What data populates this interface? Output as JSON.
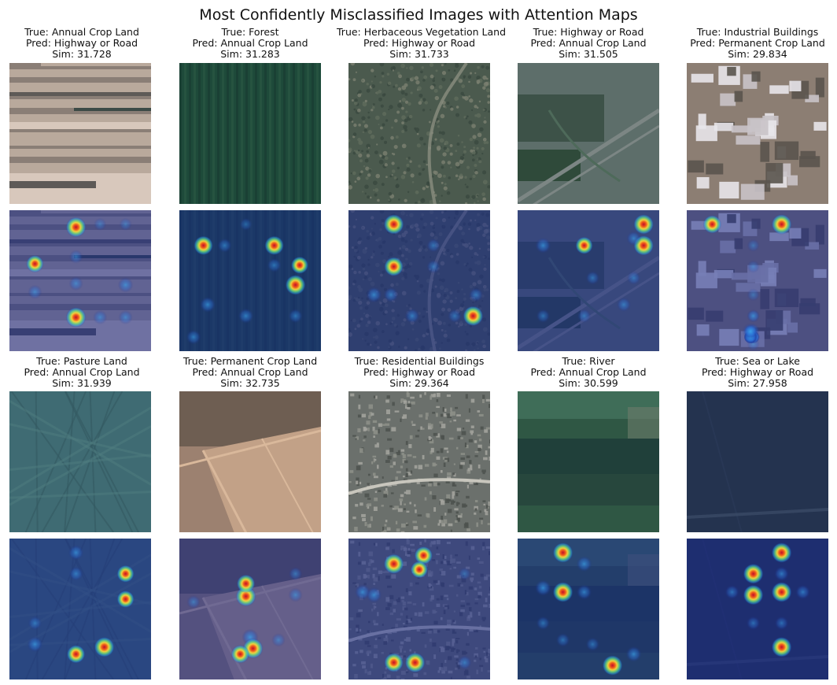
{
  "figure_title": "Most Confidently Misclassified Images with Attention Maps",
  "samples": [
    {
      "true_label": "True: Annual Crop Land",
      "pred_label": "Pred: Highway or Road",
      "sim": "Sim: 31.728",
      "scene": "annual-crop-stripes",
      "palette": [
        "#b9a99c",
        "#8a7e76",
        "#5e5a57",
        "#3c4a46",
        "#d8c8bc"
      ],
      "hotspots": [
        [
          0.47,
          0.12,
          1
        ],
        [
          0.18,
          0.38,
          0.7
        ],
        [
          0.47,
          0.33,
          0.3
        ],
        [
          0.47,
          0.52,
          0.35
        ],
        [
          0.18,
          0.58,
          0.35
        ],
        [
          0.82,
          0.53,
          0.45
        ],
        [
          0.47,
          0.76,
          1
        ],
        [
          0.82,
          0.76,
          0.35
        ],
        [
          0.64,
          0.76,
          0.35
        ],
        [
          0.64,
          0.1,
          0.2
        ],
        [
          0.82,
          0.1,
          0.2
        ]
      ]
    },
    {
      "true_label": "True: Forest",
      "pred_label": "Pred: Annual Crop Land",
      "sim": "Sim: 31.283",
      "scene": "forest",
      "palette": [
        "#1e4a3a",
        "#2c5a44",
        "#173b30"
      ],
      "hotspots": [
        [
          0.17,
          0.25,
          0.9
        ],
        [
          0.32,
          0.25,
          0.35
        ],
        [
          0.67,
          0.25,
          0.9
        ],
        [
          0.85,
          0.39,
          0.7
        ],
        [
          0.82,
          0.53,
          1
        ],
        [
          0.67,
          0.39,
          0.35
        ],
        [
          0.2,
          0.67,
          0.5
        ],
        [
          0.47,
          0.75,
          0.45
        ],
        [
          0.82,
          0.75,
          0.35
        ],
        [
          0.1,
          0.9,
          0.4
        ],
        [
          0.47,
          0.1,
          0.2
        ]
      ]
    },
    {
      "true_label": "True: Herbaceous Vegetation Land",
      "pred_label": "Pred: Highway or Road",
      "sim": "Sim: 31.733",
      "scene": "herbaceous",
      "palette": [
        "#4b5a4e",
        "#5f6b5d",
        "#7a8070",
        "#3a4840"
      ],
      "hotspots": [
        [
          0.32,
          0.1,
          1
        ],
        [
          0.32,
          0.4,
          0.9
        ],
        [
          0.6,
          0.25,
          0.3
        ],
        [
          0.6,
          0.4,
          0.3
        ],
        [
          0.18,
          0.6,
          0.5
        ],
        [
          0.3,
          0.6,
          0.4
        ],
        [
          0.45,
          0.75,
          0.4
        ],
        [
          0.9,
          0.6,
          0.35
        ],
        [
          0.88,
          0.75,
          1
        ],
        [
          0.75,
          0.75,
          0.3
        ]
      ]
    },
    {
      "true_label": "True: Highway or Road",
      "pred_label": "Pred: Annual Crop Land",
      "sim": "Sim: 31.505",
      "scene": "highway",
      "palette": [
        "#5d6e6a",
        "#3d5248",
        "#7c8684",
        "#2f4a3a"
      ],
      "hotspots": [
        [
          0.89,
          0.1,
          1
        ],
        [
          0.89,
          0.25,
          1
        ],
        [
          0.82,
          0.2,
          0.4
        ],
        [
          0.18,
          0.25,
          0.5
        ],
        [
          0.47,
          0.25,
          0.7
        ],
        [
          0.53,
          0.48,
          0.3
        ],
        [
          0.82,
          0.48,
          0.3
        ],
        [
          0.75,
          0.67,
          0.35
        ],
        [
          0.18,
          0.75,
          0.3
        ],
        [
          0.47,
          0.75,
          0.3
        ]
      ]
    },
    {
      "true_label": "True: Industrial Buildings",
      "pred_label": "Pred: Permanent Crop Land",
      "sim": "Sim: 29.834",
      "scene": "industrial",
      "palette": [
        "#8c7e73",
        "#e8e6ea",
        "#5a544e",
        "#c9c3c8"
      ],
      "hotspots": [
        [
          0.18,
          0.1,
          0.8
        ],
        [
          0.67,
          0.1,
          1
        ],
        [
          0.47,
          0.25,
          0.2
        ],
        [
          0.47,
          0.4,
          0.2
        ],
        [
          0.47,
          0.6,
          0.2
        ],
        [
          0.47,
          0.75,
          0.2
        ],
        [
          0.47,
          0.9,
          0.2
        ],
        [
          0.47,
          0.75,
          0.2
        ],
        [
          0.47,
          0.85,
          0.2
        ],
        [
          0.47,
          0.95,
          0.2
        ],
        [
          0.47,
          0.9,
          0.2
        ],
        [
          0.47,
          0.9,
          0.2
        ],
        [
          0.47,
          0.9,
          0.2
        ],
        [
          0.47,
          0.9,
          0.2
        ],
        [
          0.47,
          0.9,
          0.2
        ],
        [
          0.45,
          0.9,
          0.2
        ],
        [
          0.45,
          0.9,
          0.2
        ],
        [
          0.47,
          0.9,
          0.2
        ],
        [
          0.45,
          0.9,
          0.2
        ],
        [
          0.45,
          0.9,
          0.2
        ],
        [
          0.45,
          0.9,
          0.2
        ],
        [
          0.45,
          0.9,
          0.2
        ],
        [
          0.45,
          0.9,
          0.2
        ],
        [
          0.45,
          0.9,
          0.2
        ],
        [
          0.45,
          0.9,
          0.2
        ],
        [
          0.45,
          0.9,
          0.2
        ],
        [
          0.45,
          0.9,
          0.2
        ],
        [
          0.45,
          0.9,
          0.2
        ],
        [
          0.45,
          0.9,
          0.2
        ],
        [
          0.45,
          0.9,
          0.2
        ],
        [
          0.45,
          0.9,
          0.2
        ],
        [
          0.45,
          0.86,
          0.2
        ],
        [
          0.45,
          0.86,
          0.2
        ],
        [
          0.45,
          0.86,
          0.2
        ],
        [
          0.45,
          0.86,
          0.2
        ],
        [
          0.45,
          0.86,
          0.6
        ]
      ]
    },
    {
      "true_label": "True: Pasture Land",
      "pred_label": "Pred: Annual Crop Land",
      "sim": "Sim: 31.939",
      "scene": "pasture",
      "palette": [
        "#3f6b73",
        "#4f7d80",
        "#345a62"
      ],
      "hotspots": [
        [
          0.47,
          0.1,
          0.45
        ],
        [
          0.47,
          0.25,
          0.35
        ],
        [
          0.82,
          0.25,
          0.7
        ],
        [
          0.82,
          0.43,
          0.7
        ],
        [
          0.18,
          0.6,
          0.3
        ],
        [
          0.18,
          0.75,
          0.5
        ],
        [
          0.47,
          0.82,
          0.8
        ],
        [
          0.67,
          0.77,
          1
        ]
      ]
    },
    {
      "true_label": "True: Permanent Crop Land",
      "pred_label": "Pred: Annual Crop Land",
      "sim": "Sim: 32.735",
      "scene": "permanent-crop",
      "palette": [
        "#9c8170",
        "#b08d76",
        "#6e5e52",
        "#c2a187"
      ],
      "hotspots": [
        [
          0.47,
          0.41,
          1
        ],
        [
          0.47,
          0.32,
          0.8
        ],
        [
          0.82,
          0.25,
          0.3
        ],
        [
          0.82,
          0.4,
          0.35
        ],
        [
          0.1,
          0.45,
          0.3
        ],
        [
          0.5,
          0.7,
          0.6
        ],
        [
          0.52,
          0.78,
          1
        ],
        [
          0.43,
          0.82,
          0.8
        ],
        [
          0.7,
          0.72,
          0.3
        ]
      ]
    },
    {
      "true_label": "True: Residential Buildings",
      "pred_label": "Pred: Highway or Road",
      "sim": "Sim: 29.364",
      "scene": "residential",
      "palette": [
        "#6b706c",
        "#8e918a",
        "#4c514d",
        "#a4a59f"
      ],
      "hotspots": [
        [
          0.32,
          0.18,
          1
        ],
        [
          0.53,
          0.12,
          0.8
        ],
        [
          0.5,
          0.22,
          0.7
        ],
        [
          0.1,
          0.38,
          0.5
        ],
        [
          0.18,
          0.4,
          0.5
        ],
        [
          0.82,
          0.25,
          0.2
        ],
        [
          0.32,
          0.88,
          0.9
        ],
        [
          0.47,
          0.88,
          1
        ],
        [
          0.82,
          0.88,
          0.35
        ]
      ]
    },
    {
      "true_label": "True: River",
      "pred_label": "Pred: Annual Crop Land",
      "sim": "Sim: 30.599",
      "scene": "river",
      "palette": [
        "#2f5744",
        "#20403a",
        "#3f6d58",
        "#27473d"
      ],
      "hotspots": [
        [
          0.32,
          0.1,
          1
        ],
        [
          0.47,
          0.18,
          0.5
        ],
        [
          0.18,
          0.35,
          0.55
        ],
        [
          0.32,
          0.38,
          1
        ],
        [
          0.47,
          0.38,
          0.45
        ],
        [
          0.18,
          0.6,
          0.3
        ],
        [
          0.32,
          0.72,
          0.3
        ],
        [
          0.53,
          0.75,
          0.3
        ],
        [
          0.82,
          0.82,
          0.5
        ],
        [
          0.67,
          0.9,
          1
        ]
      ]
    },
    {
      "true_label": "True: Sea or Lake",
      "pred_label": "Pred: Highway or Road",
      "sim": "Sim: 27.958",
      "scene": "sea",
      "palette": [
        "#24334f",
        "#2a3a58",
        "#1f2c48"
      ],
      "hotspots": [
        [
          0.67,
          0.1,
          1
        ],
        [
          0.47,
          0.25,
          1
        ],
        [
          0.67,
          0.25,
          0.4
        ],
        [
          0.32,
          0.38,
          0.35
        ],
        [
          0.47,
          0.4,
          1
        ],
        [
          0.67,
          0.38,
          1
        ],
        [
          0.82,
          0.38,
          0.4
        ],
        [
          0.47,
          0.6,
          0.3
        ],
        [
          0.67,
          0.6,
          0.3
        ],
        [
          0.67,
          0.77,
          1
        ]
      ]
    }
  ],
  "colors": {
    "page_bg": "#ffffff",
    "text": "#111111",
    "overlay_base": "#1a2a8c"
  }
}
